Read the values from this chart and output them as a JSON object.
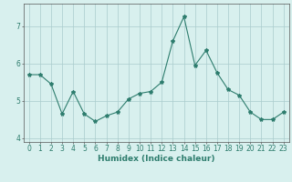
{
  "x": [
    0,
    1,
    2,
    3,
    4,
    5,
    6,
    7,
    8,
    9,
    10,
    11,
    12,
    13,
    14,
    15,
    16,
    17,
    18,
    19,
    20,
    21,
    22,
    23
  ],
  "y": [
    5.7,
    5.7,
    5.45,
    4.65,
    5.25,
    4.65,
    4.45,
    4.6,
    4.7,
    5.05,
    5.2,
    5.25,
    5.5,
    6.6,
    7.25,
    5.95,
    6.35,
    5.75,
    5.3,
    5.15,
    4.7,
    4.5,
    4.5,
    4.7
  ],
  "line_color": "#2e7d6e",
  "marker": "*",
  "marker_size": 3,
  "bg_color": "#d8f0ee",
  "grid_color": "#aacccc",
  "xlabel": "Humidex (Indice chaleur)",
  "ylabel": "",
  "xlim": [
    -0.5,
    23.5
  ],
  "ylim": [
    3.9,
    7.6
  ],
  "yticks": [
    4,
    5,
    6,
    7
  ],
  "xticks": [
    0,
    1,
    2,
    3,
    4,
    5,
    6,
    7,
    8,
    9,
    10,
    11,
    12,
    13,
    14,
    15,
    16,
    17,
    18,
    19,
    20,
    21,
    22,
    23
  ],
  "tick_fontsize": 5.5,
  "xlabel_fontsize": 6.5,
  "spine_color": "#555555"
}
